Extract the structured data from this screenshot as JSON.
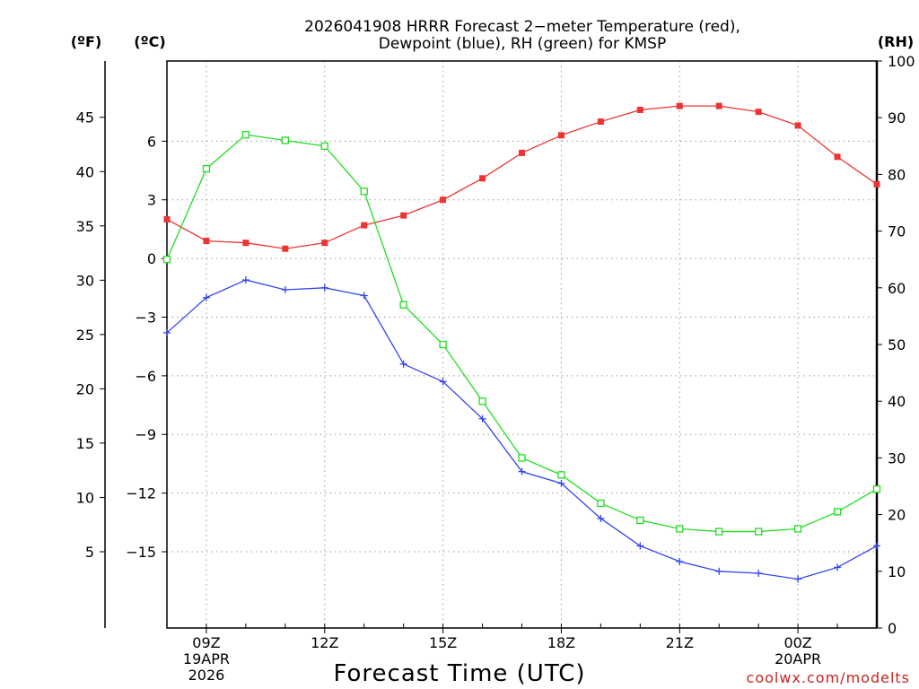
{
  "chart_data": {
    "type": "line",
    "title": [
      "2026041908 HRRR Forecast 2−meter Temperature (red),",
      "Dewpoint (blue), RH (green) for KMSP"
    ],
    "xlabel": "Forecast Time (UTC)",
    "unit_labels": {
      "fahrenheit": "(ºF)",
      "celsius": "(ºC)",
      "rh": "(RH)"
    },
    "hours": [
      8,
      9,
      10,
      11,
      12,
      13,
      14,
      15,
      16,
      17,
      18,
      19,
      20,
      21,
      22,
      23,
      24,
      25,
      26
    ],
    "x_ticks": [
      {
        "hour": 9,
        "lines": [
          "09Z",
          "19APR",
          "2026"
        ]
      },
      {
        "hour": 12,
        "lines": [
          "12Z"
        ]
      },
      {
        "hour": 15,
        "lines": [
          "15Z"
        ]
      },
      {
        "hour": 18,
        "lines": [
          "18Z"
        ]
      },
      {
        "hour": 21,
        "lines": [
          "21Z"
        ]
      },
      {
        "hour": 24,
        "lines": [
          "00Z",
          "20APR"
        ]
      }
    ],
    "xlim": [
      8,
      26
    ],
    "celsius_axis": {
      "range": [
        -18.9,
        10.1
      ],
      "ticks": [
        6,
        3,
        0,
        -3,
        -6,
        -9,
        -12,
        -15
      ],
      "tick_labels": [
        "6",
        "3",
        "0",
        "−3",
        "−6",
        "−9",
        "−12",
        "−15"
      ]
    },
    "fahrenheit_axis": {
      "ticks": [
        45,
        40,
        35,
        30,
        25,
        20,
        15,
        10,
        5
      ],
      "tick_labels": [
        "45",
        "40",
        "35",
        "30",
        "25",
        "20",
        "15",
        "10",
        "5"
      ]
    },
    "rh_axis": {
      "range": [
        0,
        100
      ],
      "ticks": [
        100,
        90,
        80,
        70,
        60,
        50,
        40,
        30,
        20,
        10,
        0
      ],
      "tick_labels": [
        "100",
        "90",
        "80",
        "70",
        "60",
        "50",
        "40",
        "30",
        "20",
        "10",
        "0"
      ]
    },
    "series": [
      {
        "name": "Temperature",
        "axis": "celsius",
        "color": "#ee3333",
        "marker": "filled-square",
        "values": [
          2.0,
          0.9,
          0.8,
          0.5,
          0.8,
          1.7,
          2.2,
          3.0,
          4.1,
          5.4,
          6.3,
          7.0,
          7.6,
          7.8,
          7.8,
          7.5,
          6.8,
          5.2,
          3.8
        ]
      },
      {
        "name": "Dewpoint",
        "axis": "celsius",
        "color": "#3344ee",
        "marker": "plus",
        "values": [
          -3.8,
          -2.0,
          -1.1,
          -1.6,
          -1.5,
          -1.9,
          -5.4,
          -6.3,
          -8.2,
          -10.9,
          -11.5,
          -13.3,
          -14.7,
          -15.5,
          -16.0,
          -16.1,
          -16.4,
          -15.8,
          -14.7
        ]
      },
      {
        "name": "RH",
        "axis": "rh",
        "color": "#22dd22",
        "marker": "open-square",
        "values": [
          65,
          81,
          87,
          86,
          85,
          77,
          57,
          50,
          40,
          30,
          27,
          22,
          19,
          17.5,
          17,
          17,
          17.5,
          20.5,
          24.5
        ]
      }
    ]
  },
  "footer": {
    "credit": "coolwx.com/modelts"
  },
  "colors": {
    "credit": "#cc2222"
  }
}
